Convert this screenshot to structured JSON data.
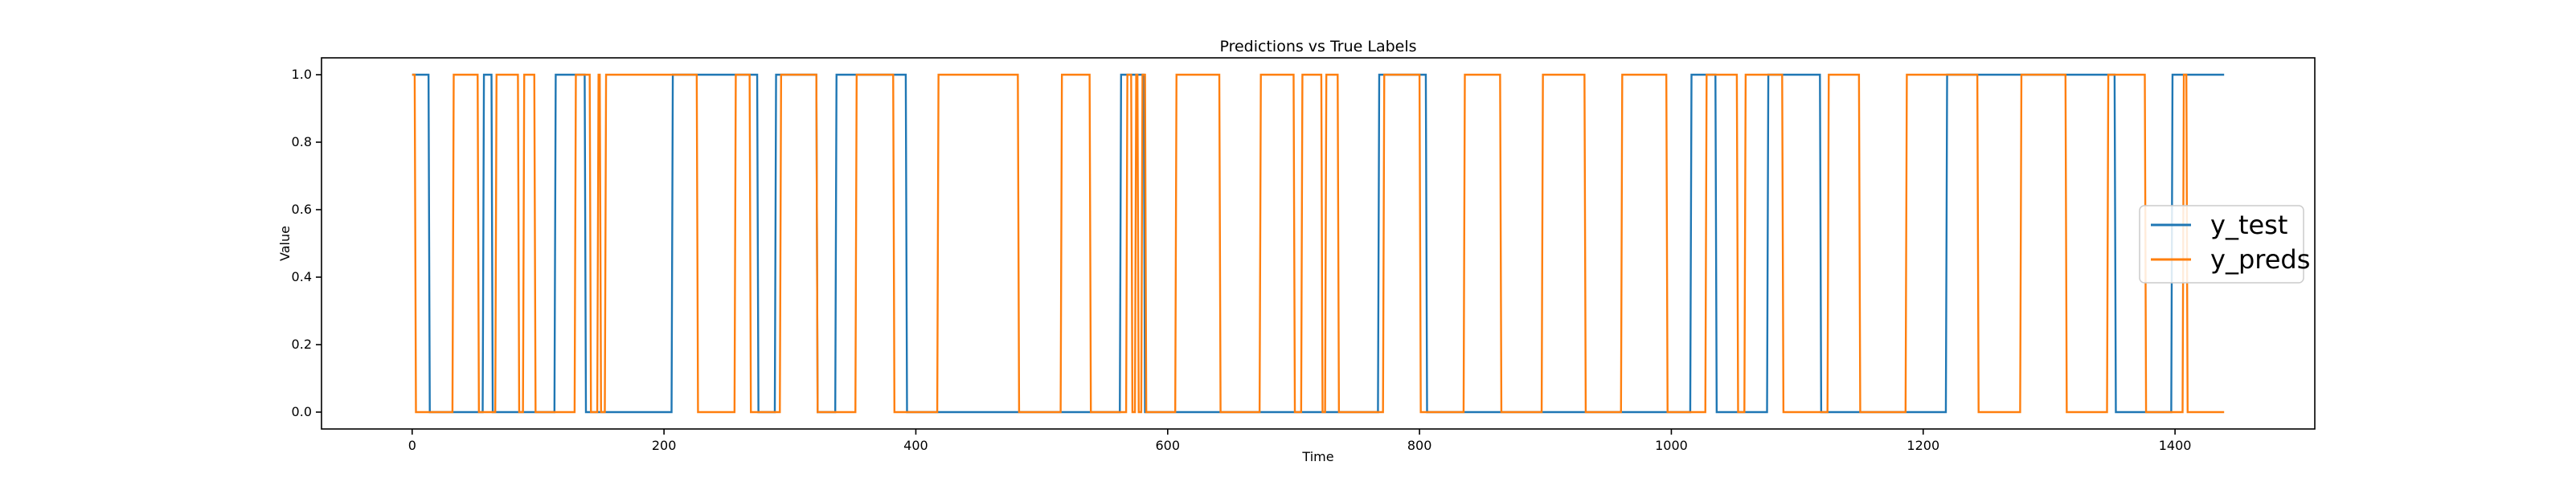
{
  "chart_data": {
    "type": "line",
    "title": "Predictions vs True Labels",
    "xlabel": "Time",
    "ylabel": "Value",
    "xlim": [
      -72,
      1511
    ],
    "ylim": [
      -0.05,
      1.05
    ],
    "xticks": [
      0,
      200,
      400,
      600,
      800,
      1000,
      1200,
      1400
    ],
    "yticks": [
      0.0,
      0.2,
      0.4,
      0.6,
      0.8,
      1.0
    ],
    "xtick_labels": [
      "0",
      "200",
      "400",
      "600",
      "800",
      "1000",
      "1200",
      "1400"
    ],
    "ytick_labels": [
      "0.0",
      "0.2",
      "0.4",
      "0.6",
      "0.8",
      "1.0"
    ],
    "grid": false,
    "legend_position": "right",
    "series": [
      {
        "name": "y_test",
        "color": "#1f77b4",
        "x": [
          0,
          13,
          14,
          56,
          57,
          63,
          64,
          113,
          114,
          137,
          138,
          206,
          207,
          274,
          275,
          288,
          289,
          321,
          322,
          336,
          337,
          392,
          393,
          562,
          563,
          581,
          582,
          767,
          768,
          805,
          806,
          1015,
          1016,
          1035,
          1036,
          1076,
          1077,
          1118,
          1119,
          1218,
          1219,
          1352,
          1353,
          1397,
          1398,
          1439
        ],
        "y": [
          1,
          1,
          0,
          0,
          1,
          1,
          0,
          0,
          1,
          1,
          0,
          0,
          1,
          1,
          0,
          0,
          1,
          1,
          0,
          0,
          1,
          1,
          0,
          0,
          1,
          1,
          0,
          0,
          1,
          1,
          0,
          0,
          1,
          1,
          0,
          0,
          1,
          1,
          0,
          0,
          1,
          1,
          0,
          0,
          1,
          1
        ]
      },
      {
        "name": "y_preds",
        "color": "#ff7f0e",
        "x": [
          0,
          2,
          3,
          32,
          33,
          52,
          53,
          66,
          67,
          84,
          85,
          88,
          89,
          97,
          98,
          129,
          130,
          141,
          142,
          147,
          148,
          149,
          150,
          153,
          154,
          226,
          227,
          256,
          257,
          268,
          269,
          292,
          293,
          321,
          322,
          352,
          353,
          382,
          383,
          417,
          418,
          481,
          482,
          515,
          516,
          538,
          539,
          567,
          568,
          571,
          572,
          574,
          575,
          576,
          577,
          579,
          580,
          582,
          583,
          606,
          607,
          641,
          642,
          673,
          674,
          700,
          701,
          706,
          707,
          722,
          723,
          725,
          726,
          735,
          736,
          771,
          772,
          800,
          801,
          835,
          836,
          864,
          865,
          897,
          898,
          931,
          932,
          960,
          961,
          996,
          997,
          1027,
          1028,
          1052,
          1053,
          1058,
          1059,
          1088,
          1089,
          1124,
          1125,
          1149,
          1150,
          1186,
          1187,
          1243,
          1244,
          1277,
          1278,
          1313,
          1314,
          1346,
          1347,
          1376,
          1377,
          1406,
          1407,
          1409,
          1410,
          1439
        ],
        "y": [
          1,
          1,
          0,
          0,
          1,
          1,
          0,
          0,
          1,
          1,
          0,
          0,
          1,
          1,
          0,
          0,
          1,
          1,
          0,
          0,
          1,
          1,
          0,
          0,
          1,
          1,
          0,
          0,
          1,
          1,
          0,
          0,
          1,
          1,
          0,
          0,
          1,
          1,
          0,
          0,
          1,
          1,
          0,
          0,
          1,
          1,
          0,
          0,
          1,
          1,
          0,
          0,
          1,
          1,
          0,
          0,
          1,
          1,
          0,
          0,
          1,
          1,
          0,
          0,
          1,
          1,
          0,
          0,
          1,
          1,
          0,
          0,
          1,
          1,
          0,
          0,
          1,
          1,
          0,
          0,
          1,
          1,
          0,
          0,
          1,
          1,
          0,
          0,
          1,
          1,
          0,
          0,
          1,
          1,
          0,
          0,
          1,
          1,
          0,
          0,
          1,
          1,
          0,
          0,
          1,
          1,
          0,
          0,
          1,
          1,
          0,
          0,
          1,
          1,
          0,
          0,
          1,
          1,
          0,
          0
        ]
      }
    ]
  }
}
